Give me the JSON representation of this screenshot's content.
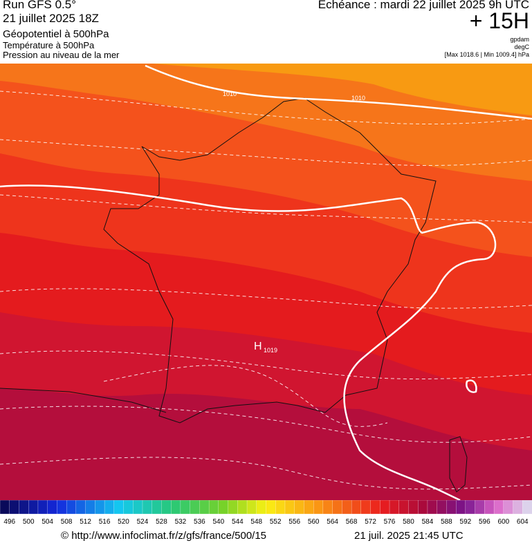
{
  "header": {
    "run": "Run GFS 0.5°",
    "run_date": "21 juillet 2025 18Z",
    "field1": "Géopotentiel à 500hPa",
    "field2": "Température à 500hPa",
    "field3": "Pression au niveau de la mer",
    "valid": "Echéance : mardi 22 juillet 2025 9h UTC",
    "lead": "+ 15H",
    "unit1": "gpdam",
    "unit2": "degC",
    "unit3": "[Max 1018.6 | Min 1009.4] hPa"
  },
  "map": {
    "labels": [
      "1010",
      "1010",
      "H",
      "1019"
    ]
  },
  "legend": {
    "labels": [
      496,
      500,
      504,
      508,
      512,
      516,
      520,
      524,
      528,
      532,
      536,
      540,
      544,
      548,
      552,
      556,
      560,
      564,
      568,
      572,
      576,
      580,
      584,
      588,
      592,
      596,
      600,
      604
    ]
  },
  "footer": {
    "url": "© http://www.infoclimat.fr/z/gfs/france/500/15",
    "time": "21 juil. 2025 21:45 UTC"
  }
}
